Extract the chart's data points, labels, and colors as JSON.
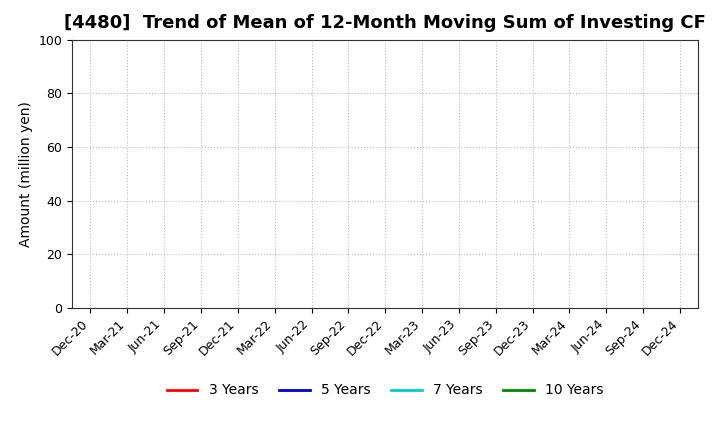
{
  "title": "[4480]  Trend of Mean of 12-Month Moving Sum of Investing CF",
  "ylabel": "Amount (million yen)",
  "ylim": [
    0,
    100
  ],
  "yticks": [
    0,
    20,
    40,
    60,
    80,
    100
  ],
  "x_tick_labels": [
    "Dec-20",
    "Mar-21",
    "Jun-21",
    "Sep-21",
    "Dec-21",
    "Mar-22",
    "Jun-22",
    "Sep-22",
    "Dec-22",
    "Mar-23",
    "Jun-23",
    "Sep-23",
    "Dec-23",
    "Mar-24",
    "Jun-24",
    "Sep-24",
    "Dec-24"
  ],
  "background_color": "#ffffff",
  "grid_color": "#bbbbbb",
  "legend": [
    {
      "label": "3 Years",
      "color": "#ff0000"
    },
    {
      "label": "5 Years",
      "color": "#0000cc"
    },
    {
      "label": "7 Years",
      "color": "#00cccc"
    },
    {
      "label": "10 Years",
      "color": "#008800"
    }
  ],
  "title_fontsize": 13,
  "axis_label_fontsize": 10,
  "tick_fontsize": 9,
  "legend_fontsize": 10
}
